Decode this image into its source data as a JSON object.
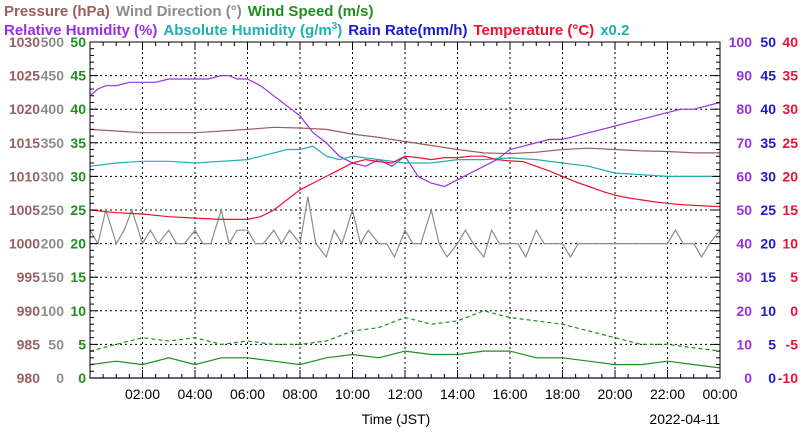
{
  "header": {
    "row1": [
      {
        "text": "Pressure (hPa)",
        "color": "#9b5f5f"
      },
      {
        "text": "Wind Direction (°)",
        "color": "#8c8c8c"
      },
      {
        "text": "Wind Speed (m/s)",
        "color": "#1f8f1f"
      }
    ],
    "row2": [
      {
        "text": "Relative Humidity (%)",
        "color": "#9a2fe0"
      },
      {
        "text": "Absolute Humidity (g/m",
        "sup": "3",
        "tail": ")",
        "color": "#20b0b0"
      },
      {
        "text": "Rain Rate(mm/h)",
        "color": "#1a1ad0"
      },
      {
        "text": "Temperature (°C)",
        "color": "#ee1133"
      },
      {
        "text": "x0.2",
        "color": "#20b0b0"
      }
    ]
  },
  "footer": {
    "xlabel": "Time (JST)",
    "date": "2022-04-11"
  },
  "chart_data": {
    "type": "line",
    "x_unit": "hour",
    "xlim": [
      0,
      24
    ],
    "x_ticks": [
      2,
      4,
      6,
      8,
      10,
      12,
      14,
      16,
      18,
      20,
      22,
      24
    ],
    "x_tick_labels": [
      "02:00",
      "04:00",
      "06:00",
      "08:00",
      "10:00",
      "12:00",
      "14:00",
      "16:00",
      "18:00",
      "20:00",
      "22:00",
      "00:00"
    ],
    "grid": true,
    "axes": {
      "pressure": {
        "side": "left",
        "range": [
          980,
          1030
        ],
        "ticks": [
          980,
          985,
          990,
          995,
          1000,
          1005,
          1010,
          1015,
          1020,
          1025,
          1030
        ],
        "color": "#9b5f5f"
      },
      "wind_direction": {
        "side": "left",
        "range": [
          0,
          500
        ],
        "ticks": [
          0,
          50,
          100,
          150,
          200,
          250,
          300,
          350,
          400,
          450,
          500
        ],
        "color": "#8c8c8c"
      },
      "wind_speed": {
        "side": "left",
        "range": [
          0,
          50
        ],
        "ticks": [
          0,
          5,
          10,
          15,
          20,
          25,
          30,
          35,
          40,
          45,
          50
        ],
        "color": "#1f8f1f"
      },
      "humidity": {
        "side": "right",
        "range": [
          0,
          100
        ],
        "ticks": [
          0,
          10,
          20,
          30,
          40,
          50,
          60,
          70,
          80,
          90,
          100
        ],
        "color": "#9a2fe0"
      },
      "rain_rate": {
        "side": "right",
        "range": [
          0,
          50
        ],
        "ticks": [
          0,
          5,
          10,
          15,
          20,
          25,
          30,
          35,
          40,
          45,
          50
        ],
        "color": "#1a1ad0"
      },
      "temperature": {
        "side": "right",
        "range": [
          -10,
          40
        ],
        "ticks": [
          -10,
          -5,
          0,
          5,
          10,
          15,
          20,
          25,
          30,
          35,
          40
        ],
        "color": "#ee1133"
      }
    },
    "series": [
      {
        "name": "Pressure (hPa)",
        "axis": "pressure",
        "color": "#9b5f5f",
        "style": "solid",
        "x": [
          0,
          2,
          4,
          6,
          7,
          8,
          9,
          10,
          11,
          12,
          13,
          14,
          15,
          16,
          17,
          18,
          19,
          20,
          21,
          22,
          23,
          24
        ],
        "y": [
          1017,
          1016.5,
          1016.5,
          1017,
          1017.3,
          1017.2,
          1017,
          1016.3,
          1015.8,
          1015.2,
          1014.6,
          1014,
          1013.5,
          1013.4,
          1013.6,
          1014,
          1014.2,
          1014,
          1013.8,
          1013.7,
          1013.5,
          1013.5
        ]
      },
      {
        "name": "Wind Direction (°)",
        "axis": "wind_direction",
        "color": "#8c8c8c",
        "style": "solid",
        "x": [
          0,
          0.3,
          0.6,
          1.0,
          1.3,
          1.6,
          2.0,
          2.3,
          2.6,
          3.0,
          3.3,
          3.6,
          4.0,
          4.3,
          4.6,
          5.0,
          5.3,
          5.6,
          6.0,
          6.3,
          6.6,
          7.0,
          7.3,
          7.6,
          8.0,
          8.3,
          8.6,
          9.0,
          9.3,
          9.6,
          10.0,
          10.3,
          10.6,
          11.0,
          11.3,
          11.6,
          12.0,
          12.3,
          12.6,
          13.0,
          13.3,
          13.6,
          14.0,
          14.3,
          14.6,
          15.0,
          15.3,
          15.6,
          16.0,
          16.3,
          16.6,
          17.0,
          17.3,
          17.6,
          18.0,
          18.3,
          18.6,
          19.0,
          19.3,
          19.6,
          20.0,
          20.3,
          20.6,
          21.0,
          21.3,
          21.6,
          22.0,
          22.3,
          22.6,
          23.0,
          23.3,
          23.6,
          24.0
        ],
        "y": [
          220,
          200,
          250,
          200,
          220,
          250,
          200,
          220,
          200,
          220,
          200,
          200,
          220,
          200,
          200,
          250,
          200,
          220,
          220,
          200,
          200,
          220,
          200,
          220,
          200,
          270,
          200,
          180,
          220,
          200,
          250,
          200,
          220,
          200,
          200,
          180,
          220,
          200,
          200,
          250,
          200,
          180,
          200,
          220,
          200,
          180,
          220,
          200,
          200,
          200,
          180,
          220,
          200,
          200,
          200,
          180,
          200,
          200,
          200,
          200,
          200,
          200,
          200,
          200,
          200,
          200,
          200,
          220,
          200,
          200,
          180,
          200,
          220
        ]
      },
      {
        "name": "Wind Speed (m/s)",
        "axis": "wind_speed",
        "color": "#1f8f1f",
        "style": "solid",
        "x": [
          0,
          1,
          2,
          3,
          4,
          5,
          6,
          7,
          8,
          9,
          10,
          11,
          12,
          13,
          14,
          15,
          16,
          17,
          18,
          19,
          20,
          21,
          22,
          23,
          24
        ],
        "y": [
          2,
          2.5,
          2,
          3,
          2,
          3,
          3,
          2.5,
          2,
          3,
          3.5,
          3,
          4,
          3.5,
          3.5,
          4,
          4,
          3,
          3,
          2.5,
          2,
          2,
          2.5,
          2,
          1.5
        ]
      },
      {
        "name": "Wind Speed peak",
        "axis": "wind_speed",
        "color": "#1f8f1f",
        "style": "dashed",
        "x": [
          0,
          1,
          2,
          3,
          4,
          5,
          6,
          7,
          8,
          9,
          10,
          11,
          12,
          13,
          14,
          15,
          16,
          17,
          18,
          19,
          20,
          21,
          22,
          23,
          24
        ],
        "y": [
          4,
          5,
          6,
          5.5,
          6,
          5,
          5.5,
          5,
          5,
          5.5,
          7,
          7.5,
          9,
          8,
          8.5,
          10,
          9,
          8.5,
          8,
          7,
          6,
          5,
          5,
          4.5,
          4
        ]
      },
      {
        "name": "Relative Humidity (%)",
        "axis": "humidity",
        "color": "#9a2fe0",
        "style": "solid",
        "x": [
          0,
          0.3,
          0.6,
          1.0,
          1.5,
          2.0,
          2.5,
          3.0,
          3.5,
          4.0,
          4.5,
          5.0,
          5.3,
          5.6,
          6.0,
          6.5,
          7.0,
          7.5,
          8.0,
          8.5,
          9.0,
          9.5,
          10.0,
          10.5,
          11.0,
          11.5,
          12.0,
          12.5,
          13.0,
          13.5,
          14.0,
          14.5,
          15.0,
          15.5,
          16.0,
          16.5,
          17.0,
          17.5,
          18.0,
          18.5,
          19.0,
          19.5,
          20.0,
          20.5,
          21.0,
          21.5,
          22.0,
          22.5,
          23.0,
          23.5,
          24.0
        ],
        "y": [
          84,
          86,
          87,
          87,
          88,
          88,
          88,
          89,
          89,
          89,
          89,
          90,
          90,
          89,
          89,
          87,
          84,
          81,
          78,
          73,
          70,
          66,
          64,
          63,
          65,
          63,
          66,
          60,
          58,
          57,
          59,
          61,
          63,
          65,
          68,
          69,
          70,
          71,
          71,
          72,
          73,
          74,
          75,
          76,
          77,
          78,
          79,
          80,
          80,
          81,
          82
        ]
      },
      {
        "name": "Absolute Humidity (g/m3) x0.2",
        "axis": "humidity",
        "color": "#20b0b0",
        "style": "solid",
        "x": [
          0,
          1,
          2,
          3,
          4,
          5,
          6,
          7,
          7.5,
          8,
          8.5,
          9,
          9.5,
          10,
          11,
          12,
          13,
          14,
          15,
          16,
          17,
          18,
          19,
          20,
          21,
          22,
          23,
          24
        ],
        "y": [
          63,
          64,
          64.5,
          64.5,
          64,
          64.5,
          65,
          67,
          68,
          68,
          69,
          66,
          65,
          66,
          65,
          64,
          64,
          65,
          65,
          65.5,
          65,
          64,
          63,
          61,
          60.5,
          60,
          60,
          60
        ]
      },
      {
        "name": "Rain Rate(mm/h)",
        "axis": "rain_rate",
        "color": "#1a1ad0",
        "style": "solid",
        "x": [
          0,
          24
        ],
        "y": [
          0,
          0
        ]
      },
      {
        "name": "Temperature (°C)",
        "axis": "temperature",
        "color": "#ee1133",
        "style": "solid",
        "x": [
          0,
          1,
          2,
          3,
          4,
          5,
          6,
          6.5,
          7,
          7.5,
          8,
          8.5,
          9,
          9.5,
          10,
          10.5,
          11,
          11.5,
          12,
          12.5,
          13,
          13.5,
          14,
          14.5,
          15,
          15.5,
          16,
          16.5,
          17,
          17.5,
          18,
          18.5,
          19,
          19.5,
          20,
          20.5,
          21,
          21.5,
          22,
          22.5,
          23,
          23.5,
          24
        ],
        "y": [
          15,
          14.6,
          14.4,
          14,
          13.8,
          13.6,
          13.6,
          14,
          15,
          16.5,
          18,
          19,
          20,
          21,
          22,
          22.5,
          22.2,
          22,
          23,
          22.8,
          22.5,
          22.8,
          22.8,
          23,
          23,
          22.5,
          22.3,
          22.2,
          21.5,
          20.8,
          20,
          19.2,
          18.5,
          17.8,
          17.2,
          16.8,
          16.5,
          16.2,
          16,
          15.8,
          15.7,
          15.6,
          15.5
        ]
      }
    ]
  }
}
